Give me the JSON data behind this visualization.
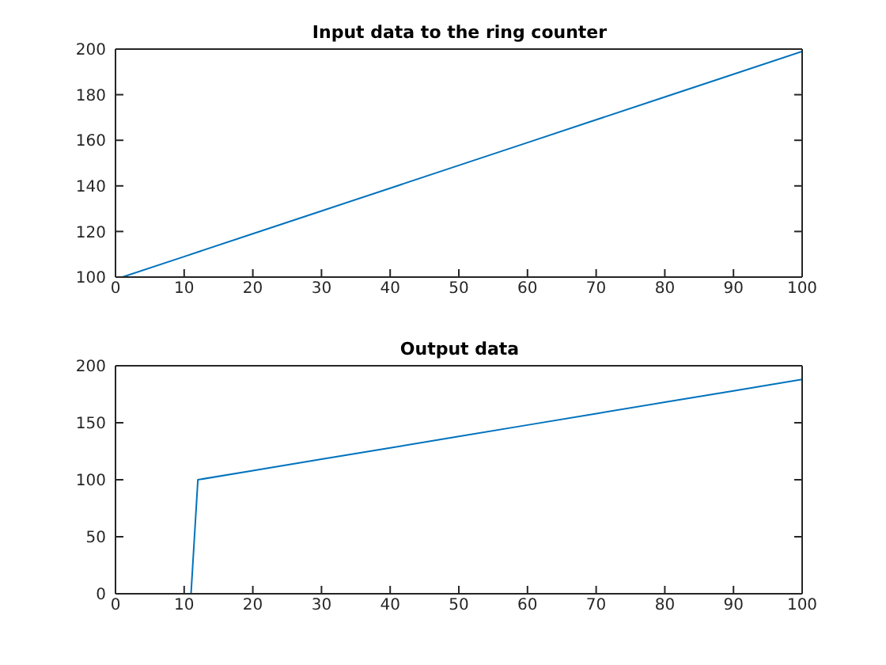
{
  "chart_data": [
    {
      "type": "line",
      "title": "Input data to the ring counter",
      "x": [
        1,
        10,
        20,
        30,
        40,
        50,
        60,
        70,
        80,
        90,
        100
      ],
      "values": [
        100,
        109,
        119,
        129,
        139,
        149,
        159,
        169,
        179,
        189,
        199
      ],
      "color": "#0072bd",
      "xlim": [
        0,
        100
      ],
      "xticks": [
        0,
        10,
        20,
        30,
        40,
        50,
        60,
        70,
        80,
        90,
        100
      ],
      "ylim": [
        100,
        200
      ],
      "yticks": [
        100,
        120,
        140,
        160,
        180,
        200
      ],
      "line_style": "solid",
      "marker": "none"
    },
    {
      "type": "line",
      "title": "Output data",
      "x": [
        1,
        11,
        12,
        20,
        30,
        40,
        50,
        60,
        70,
        80,
        90,
        100
      ],
      "values": [
        0,
        0,
        100,
        108,
        118,
        128,
        138,
        148,
        158,
        168,
        178,
        188
      ],
      "color": "#0072bd",
      "xlim": [
        0,
        100
      ],
      "xticks": [
        0,
        10,
        20,
        30,
        40,
        50,
        60,
        70,
        80,
        90,
        100
      ],
      "ylim": [
        0,
        200
      ],
      "yticks": [
        0,
        50,
        100,
        150,
        200
      ],
      "line_style": "solid",
      "marker": "none"
    }
  ]
}
